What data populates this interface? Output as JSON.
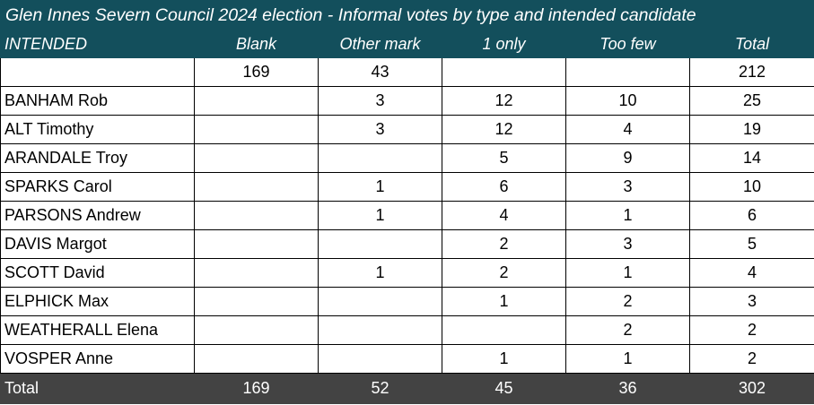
{
  "title": "Glen Innes Severn Council 2024 election - Informal votes by type and intended candidate",
  "columns": [
    "INTENDED",
    "Blank",
    "Other mark",
    "1 only",
    "Too few",
    "Total"
  ],
  "rows": [
    [
      "",
      "169",
      "43",
      "",
      "",
      "212"
    ],
    [
      "BANHAM Rob",
      "",
      "3",
      "12",
      "10",
      "25"
    ],
    [
      "ALT Timothy",
      "",
      "3",
      "12",
      "4",
      "19"
    ],
    [
      "ARANDALE Troy",
      "",
      "",
      "5",
      "9",
      "14"
    ],
    [
      "SPARKS Carol",
      "",
      "1",
      "6",
      "3",
      "10"
    ],
    [
      "PARSONS Andrew",
      "",
      "1",
      "4",
      "1",
      "6"
    ],
    [
      "DAVIS Margot",
      "",
      "",
      "2",
      "3",
      "5"
    ],
    [
      "SCOTT David",
      "",
      "1",
      "2",
      "1",
      "4"
    ],
    [
      "ELPHICK Max",
      "",
      "",
      "1",
      "2",
      "3"
    ],
    [
      "WEATHERALL Elena",
      "",
      "",
      "",
      "2",
      "2"
    ],
    [
      "VOSPER Anne",
      "",
      "",
      "1",
      "1",
      "2"
    ]
  ],
  "totals": [
    "Total",
    "169",
    "52",
    "45",
    "36",
    "302"
  ],
  "colors": {
    "header_bg": "#134f5c",
    "footer_bg": "#434343"
  }
}
